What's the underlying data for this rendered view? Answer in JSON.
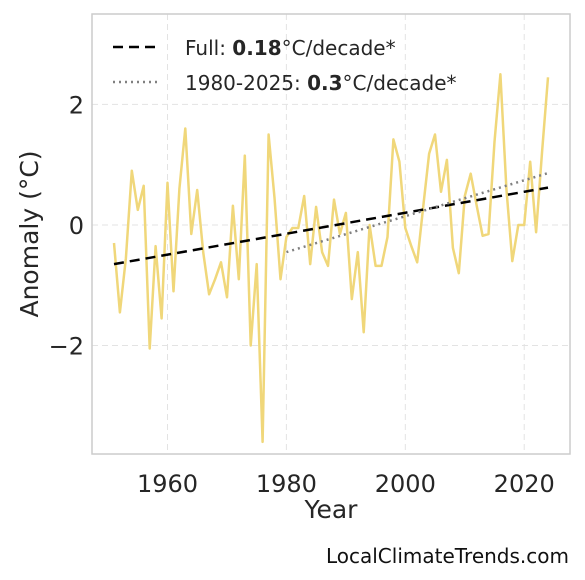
{
  "chart_data": {
    "type": "line",
    "xlabel": "Year",
    "ylabel": "Anomaly (°C)",
    "xlim": [
      1947.3,
      2027.7
    ],
    "ylim": [
      -3.8,
      3.5
    ],
    "x_ticks": [
      1960,
      1980,
      2000,
      2020
    ],
    "x_tick_labels": [
      "1960",
      "1980",
      "2000",
      "2020"
    ],
    "y_ticks": [
      -2,
      0,
      2
    ],
    "y_tick_labels": [
      "−2",
      "0",
      "2"
    ],
    "grid": true,
    "legend_position": "top-left",
    "colors": {
      "anomaly": "#f0d77a",
      "full_trend": "#000000",
      "recent_trend": "#808080"
    },
    "series": [
      {
        "x": [
          1951,
          1952,
          1953,
          1954,
          1955,
          1956,
          1957,
          1958,
          1959,
          1960,
          1961,
          1962,
          1963,
          1964,
          1965,
          1966,
          1967,
          1968,
          1969,
          1970,
          1971,
          1972,
          1973,
          1974,
          1975,
          1976,
          1977,
          1978,
          1979,
          1980,
          1981,
          1982,
          1983,
          1984,
          1985,
          1986,
          1987,
          1988,
          1989,
          1990,
          1991,
          1992,
          1993,
          1994,
          1995,
          1996,
          1997,
          1998,
          1999,
          2000,
          2001,
          2002,
          2003,
          2004,
          2005,
          2006,
          2007,
          2008,
          2009,
          2010,
          2011,
          2012,
          2013,
          2014,
          2015,
          2016,
          2017,
          2018,
          2019,
          2020,
          2021,
          2022,
          2023,
          2024
        ],
        "values": [
          -0.3,
          -1.45,
          -0.55,
          0.9,
          0.25,
          0.65,
          -2.05,
          -0.35,
          -1.55,
          0.7,
          -1.1,
          0.6,
          1.6,
          -0.15,
          0.58,
          -0.45,
          -1.15,
          -0.9,
          -0.62,
          -1.2,
          0.32,
          -0.9,
          1.15,
          -2.0,
          -0.65,
          -3.6,
          1.5,
          0.45,
          -0.9,
          -0.2,
          -0.05,
          -0.05,
          0.48,
          -0.65,
          0.3,
          -0.45,
          -0.68,
          0.42,
          -0.15,
          0.2,
          -1.23,
          -0.45,
          -1.78,
          0.0,
          -0.68,
          -0.68,
          -0.2,
          1.42,
          1.05,
          -0.05,
          -0.35,
          -0.62,
          0.3,
          1.18,
          1.5,
          0.55,
          1.08,
          -0.38,
          -0.8,
          0.48,
          0.85,
          0.32,
          -0.18,
          -0.15,
          1.38,
          2.5,
          0.6,
          -0.6,
          0.0,
          0.0,
          1.05,
          -0.12,
          1.22,
          2.45
        ]
      },
      {
        "name": "Full: 0.18°C/decade*",
        "x": [
          1951,
          2024
        ],
        "values": [
          -0.65,
          0.62
        ]
      },
      {
        "name": "1980-2025: 0.3°C/decade*",
        "x": [
          1980,
          2024
        ],
        "values": [
          -0.45,
          0.86
        ]
      }
    ]
  },
  "legend": {
    "full": {
      "prefix": "Full: ",
      "value": "0.18",
      "suffix": "°C/decade*"
    },
    "recent": {
      "prefix": "1980-2025: ",
      "value": "0.3",
      "suffix": "°C/decade*"
    }
  },
  "credit": "LocalClimateTrends.com"
}
